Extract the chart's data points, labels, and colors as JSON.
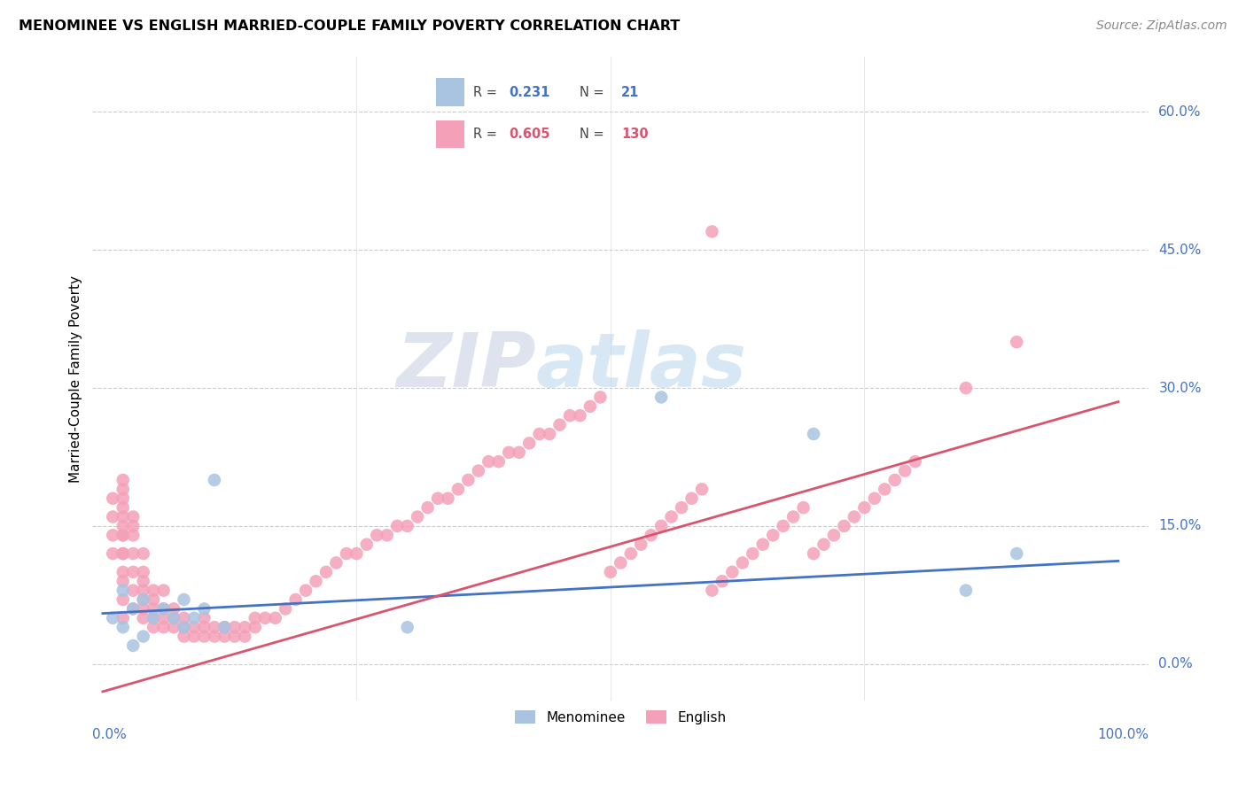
{
  "title": "MENOMINEE VS ENGLISH MARRIED-COUPLE FAMILY POVERTY CORRELATION CHART",
  "source": "Source: ZipAtlas.com",
  "ylabel": "Married-Couple Family Poverty",
  "ytick_labels": [
    "0.0%",
    "15.0%",
    "30.0%",
    "45.0%",
    "60.0%"
  ],
  "ytick_values": [
    0.0,
    0.15,
    0.3,
    0.45,
    0.6
  ],
  "xlim": [
    -0.01,
    1.03
  ],
  "ylim": [
    -0.04,
    0.66
  ],
  "legend_r_menominee": "0.231",
  "legend_n_menominee": "21",
  "legend_r_english": "0.605",
  "legend_n_english": "130",
  "menominee_color": "#a8c4e0",
  "english_color": "#f4a0b8",
  "trendline_menominee_color": "#4472c4",
  "trendline_english_color": "#d9546e",
  "watermark_zip": "ZIP",
  "watermark_atlas": "atlas",
  "menominee_x": [
    0.01,
    0.02,
    0.02,
    0.03,
    0.03,
    0.04,
    0.04,
    0.05,
    0.06,
    0.07,
    0.08,
    0.08,
    0.09,
    0.1,
    0.11,
    0.12,
    0.3,
    0.55,
    0.7,
    0.85,
    0.9
  ],
  "menominee_y": [
    0.05,
    0.08,
    0.04,
    0.06,
    0.02,
    0.07,
    0.03,
    0.05,
    0.06,
    0.05,
    0.04,
    0.07,
    0.05,
    0.06,
    0.2,
    0.04,
    0.04,
    0.29,
    0.25,
    0.08,
    0.12
  ],
  "english_x": [
    0.01,
    0.01,
    0.01,
    0.01,
    0.02,
    0.02,
    0.02,
    0.02,
    0.02,
    0.02,
    0.02,
    0.02,
    0.02,
    0.02,
    0.02,
    0.02,
    0.02,
    0.02,
    0.03,
    0.03,
    0.03,
    0.03,
    0.03,
    0.03,
    0.03,
    0.04,
    0.04,
    0.04,
    0.04,
    0.04,
    0.04,
    0.04,
    0.05,
    0.05,
    0.05,
    0.05,
    0.05,
    0.06,
    0.06,
    0.06,
    0.06,
    0.07,
    0.07,
    0.07,
    0.08,
    0.08,
    0.08,
    0.09,
    0.09,
    0.1,
    0.1,
    0.1,
    0.11,
    0.11,
    0.12,
    0.12,
    0.13,
    0.13,
    0.14,
    0.14,
    0.15,
    0.15,
    0.16,
    0.17,
    0.18,
    0.19,
    0.2,
    0.21,
    0.22,
    0.23,
    0.24,
    0.25,
    0.26,
    0.27,
    0.28,
    0.29,
    0.3,
    0.31,
    0.32,
    0.33,
    0.34,
    0.35,
    0.36,
    0.37,
    0.38,
    0.39,
    0.4,
    0.41,
    0.42,
    0.43,
    0.44,
    0.45,
    0.46,
    0.47,
    0.48,
    0.49,
    0.5,
    0.51,
    0.52,
    0.53,
    0.54,
    0.55,
    0.56,
    0.57,
    0.58,
    0.59,
    0.6,
    0.61,
    0.62,
    0.63,
    0.64,
    0.65,
    0.66,
    0.67,
    0.68,
    0.69,
    0.7,
    0.71,
    0.72,
    0.73,
    0.74,
    0.75,
    0.76,
    0.77,
    0.78,
    0.79,
    0.8,
    0.85,
    0.9,
    0.6
  ],
  "english_y": [
    0.12,
    0.14,
    0.16,
    0.18,
    0.05,
    0.07,
    0.09,
    0.1,
    0.12,
    0.14,
    0.15,
    0.16,
    0.17,
    0.18,
    0.19,
    0.2,
    0.12,
    0.14,
    0.06,
    0.08,
    0.1,
    0.12,
    0.14,
    0.15,
    0.16,
    0.05,
    0.06,
    0.07,
    0.08,
    0.09,
    0.1,
    0.12,
    0.04,
    0.05,
    0.06,
    0.07,
    0.08,
    0.04,
    0.05,
    0.06,
    0.08,
    0.04,
    0.05,
    0.06,
    0.03,
    0.04,
    0.05,
    0.03,
    0.04,
    0.03,
    0.04,
    0.05,
    0.03,
    0.04,
    0.03,
    0.04,
    0.03,
    0.04,
    0.03,
    0.04,
    0.04,
    0.05,
    0.05,
    0.05,
    0.06,
    0.07,
    0.08,
    0.09,
    0.1,
    0.11,
    0.12,
    0.12,
    0.13,
    0.14,
    0.14,
    0.15,
    0.15,
    0.16,
    0.17,
    0.18,
    0.18,
    0.19,
    0.2,
    0.21,
    0.22,
    0.22,
    0.23,
    0.23,
    0.24,
    0.25,
    0.25,
    0.26,
    0.27,
    0.27,
    0.28,
    0.29,
    0.1,
    0.11,
    0.12,
    0.13,
    0.14,
    0.15,
    0.16,
    0.17,
    0.18,
    0.19,
    0.08,
    0.09,
    0.1,
    0.11,
    0.12,
    0.13,
    0.14,
    0.15,
    0.16,
    0.17,
    0.12,
    0.13,
    0.14,
    0.15,
    0.16,
    0.17,
    0.18,
    0.19,
    0.2,
    0.21,
    0.22,
    0.3,
    0.35,
    0.47
  ],
  "trendline_men_x0": 0.0,
  "trendline_men_x1": 1.0,
  "trendline_men_y0": 0.055,
  "trendline_men_y1": 0.112,
  "trendline_eng_x0": 0.0,
  "trendline_eng_x1": 1.0,
  "trendline_eng_y0": -0.03,
  "trendline_eng_y1": 0.285
}
